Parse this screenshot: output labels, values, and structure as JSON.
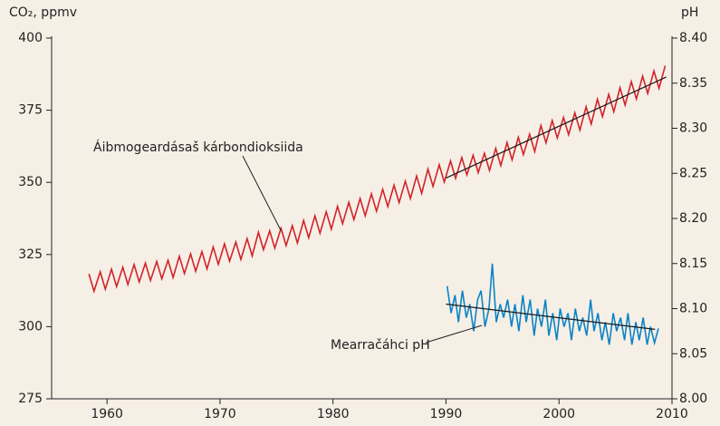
{
  "chart_data": {
    "type": "line",
    "ylabel": "CO₂, ppmv",
    "y2label": "pH",
    "xlim": [
      1955.1,
      2010
    ],
    "xticks": [
      1960,
      1970,
      1980,
      1990,
      2000,
      2010
    ],
    "ylim": [
      275,
      400
    ],
    "yticks": [
      275,
      300,
      325,
      350,
      375,
      400
    ],
    "y2lim": [
      8.0,
      8.4
    ],
    "y2ticks": [
      {
        "value": 8.0,
        "label": "8.00"
      },
      8.05,
      {
        "value": 8.1,
        "label": "8.10"
      },
      8.15,
      {
        "value": 8.2,
        "label": "8.20"
      },
      8.25,
      {
        "value": 8.3,
        "label": "8.30"
      },
      8.35,
      {
        "value": 8.4,
        "label": "8.40"
      }
    ],
    "series": [
      {
        "name": "Áibmogeardásaš kárbondioksiida",
        "color": "#d2232a",
        "x": [
          1958.4,
          1958.85,
          1959.4,
          1959.85,
          1960.4,
          1960.85,
          1961.4,
          1961.85,
          1962.4,
          1962.85,
          1963.4,
          1963.85,
          1964.4,
          1964.85,
          1965.4,
          1965.85,
          1966.4,
          1966.85,
          1967.4,
          1967.85,
          1968.4,
          1968.85,
          1969.4,
          1969.85,
          1970.4,
          1970.85,
          1971.4,
          1971.85,
          1972.4,
          1972.85,
          1973.4,
          1973.85,
          1974.4,
          1974.85,
          1975.4,
          1975.85,
          1976.4,
          1976.85,
          1977.4,
          1977.85,
          1978.4,
          1978.85,
          1979.4,
          1979.85,
          1980.4,
          1980.85,
          1981.4,
          1981.85,
          1982.4,
          1982.85,
          1983.4,
          1983.85,
          1984.4,
          1984.85,
          1985.4,
          1985.85,
          1986.4,
          1986.85,
          1987.4,
          1987.85,
          1988.4,
          1988.85,
          1989.4,
          1989.85,
          1990.4,
          1990.85,
          1991.4,
          1991.85,
          1992.4,
          1992.85,
          1993.4,
          1993.85,
          1994.4,
          1994.85,
          1995.4,
          1995.85,
          1996.4,
          1996.85,
          1997.4,
          1997.85,
          1998.4,
          1998.85,
          1999.4,
          1999.85,
          2000.4,
          2000.85,
          2001.4,
          2001.85,
          2002.4,
          2002.85,
          2003.4,
          2003.85,
          2004.4,
          2004.85,
          2005.4,
          2005.85,
          2006.4,
          2006.85,
          2007.4,
          2007.85,
          2008.4,
          2008.85,
          2009.4
        ],
        "values": [
          318.3,
          312.3,
          319.0,
          313.0,
          319.9,
          313.9,
          320.6,
          314.6,
          321.5,
          315.5,
          322.0,
          316.0,
          322.6,
          316.6,
          323.0,
          317.0,
          324.4,
          318.4,
          325.2,
          319.2,
          326.0,
          320.0,
          327.6,
          321.6,
          328.7,
          322.7,
          329.3,
          323.3,
          330.5,
          324.5,
          332.7,
          326.7,
          333.2,
          327.2,
          334.1,
          328.1,
          335.0,
          329.0,
          336.8,
          330.8,
          338.4,
          332.4,
          339.8,
          333.8,
          341.7,
          335.7,
          343.1,
          337.1,
          344.4,
          338.4,
          346.0,
          340.0,
          347.6,
          341.6,
          349.0,
          343.0,
          350.4,
          344.4,
          352.2,
          346.2,
          354.6,
          348.6,
          356.1,
          350.1,
          357.4,
          351.4,
          358.6,
          352.6,
          359.4,
          353.4,
          360.1,
          354.1,
          361.8,
          355.8,
          363.8,
          357.8,
          365.6,
          359.6,
          366.7,
          360.7,
          369.7,
          363.7,
          371.4,
          365.4,
          372.5,
          366.5,
          374.1,
          368.1,
          376.2,
          370.2,
          378.8,
          372.8,
          380.5,
          374.5,
          382.8,
          376.8,
          384.9,
          378.9,
          386.8,
          380.8,
          388.6,
          382.6,
          390.4
        ]
      },
      {
        "color": "#1a1a1a",
        "x": [
          1990,
          2009.5
        ],
        "values": [
          351.5,
          386.5
        ]
      },
      {
        "name": "Mearračáhci pH",
        "color": "#0b84c6",
        "axis": "y2",
        "x": [
          1990.1,
          1990.45,
          1990.8,
          1991.1,
          1991.45,
          1991.8,
          1992.1,
          1992.45,
          1992.8,
          1993.1,
          1993.45,
          1993.8,
          1994.1,
          1994.45,
          1994.8,
          1995.1,
          1995.45,
          1995.8,
          1996.1,
          1996.45,
          1996.8,
          1997.1,
          1997.45,
          1997.8,
          1998.1,
          1998.45,
          1998.8,
          1999.1,
          1999.45,
          1999.8,
          2000.1,
          2000.45,
          2000.8,
          2001.1,
          2001.45,
          2001.8,
          2002.1,
          2002.45,
          2002.8,
          2003.1,
          2003.45,
          2003.8,
          2004.1,
          2004.45,
          2004.8,
          2005.1,
          2005.45,
          2005.8,
          2006.1,
          2006.45,
          2006.8,
          2007.1,
          2007.45,
          2007.8,
          2008.1,
          2008.45,
          2008.8
        ],
        "values": [
          8.125,
          8.095,
          8.115,
          8.085,
          8.12,
          8.09,
          8.105,
          8.075,
          8.11,
          8.12,
          8.08,
          8.1,
          8.15,
          8.085,
          8.105,
          8.09,
          8.11,
          8.08,
          8.105,
          8.075,
          8.115,
          8.085,
          8.11,
          8.07,
          8.1,
          8.08,
          8.11,
          8.07,
          8.095,
          8.065,
          8.1,
          8.08,
          8.095,
          8.065,
          8.1,
          8.075,
          8.09,
          8.07,
          8.11,
          8.075,
          8.095,
          8.065,
          8.085,
          8.06,
          8.095,
          8.075,
          8.09,
          8.065,
          8.095,
          8.06,
          8.085,
          8.065,
          8.09,
          8.06,
          8.08,
          8.062,
          8.078
        ]
      },
      {
        "color": "#1a1a1a",
        "axis": "y2",
        "x": [
          1990,
          2008.5
        ],
        "values": [
          8.105,
          8.077
        ]
      }
    ]
  }
}
